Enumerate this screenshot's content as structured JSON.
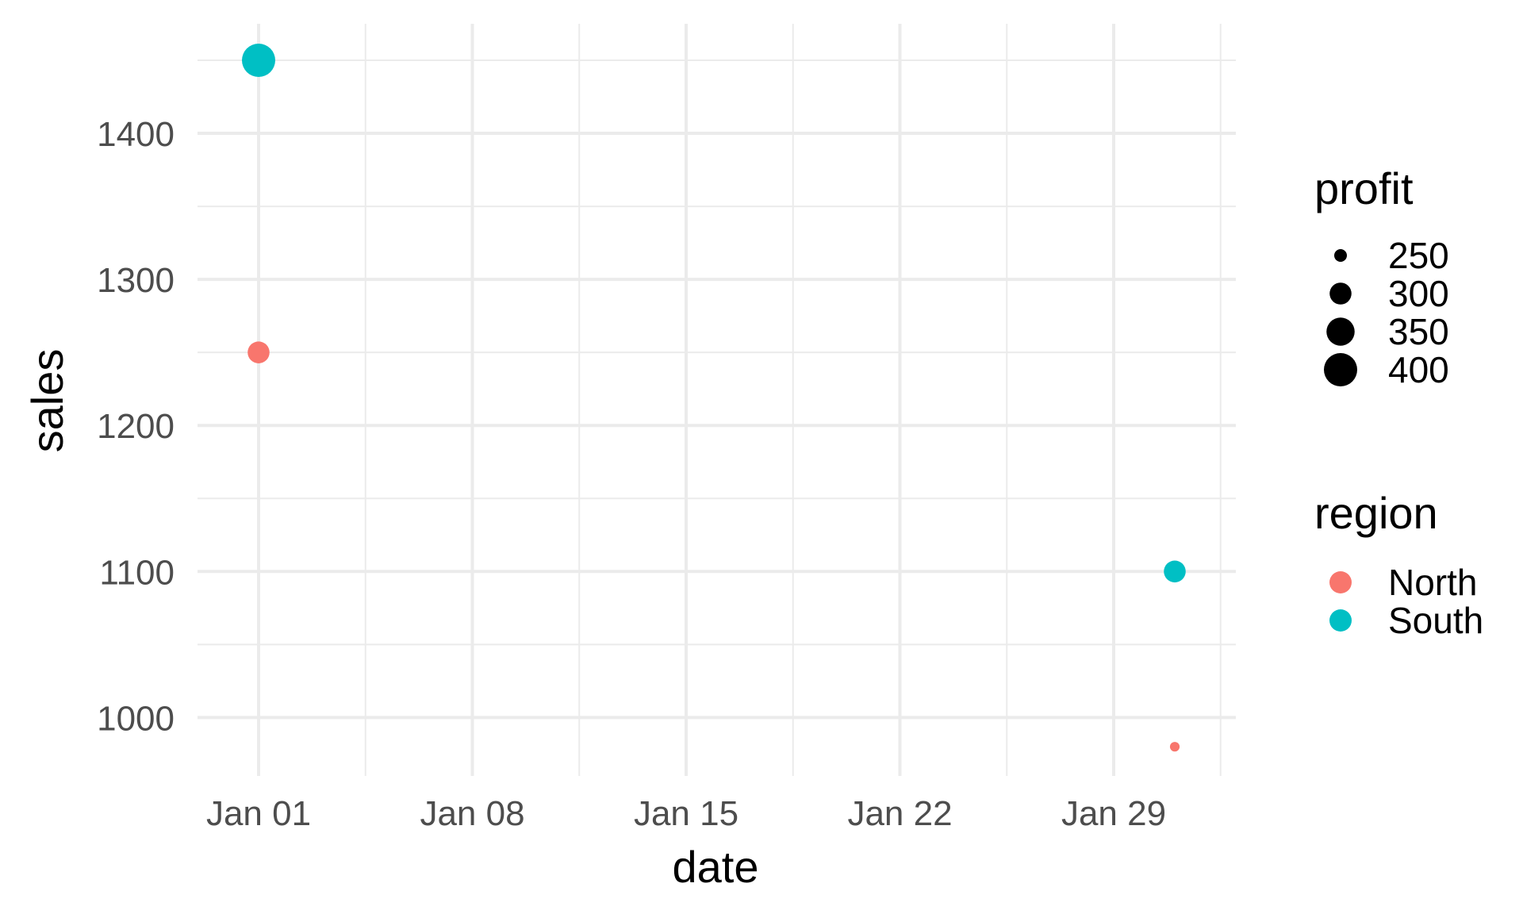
{
  "chart_data": {
    "type": "scatter",
    "title": "",
    "xlabel": "date",
    "ylabel": "sales",
    "x_axis": {
      "scale": "date",
      "range": [
        "2023-12-30",
        "2024-02-02"
      ],
      "ticks": [
        "2024-01-01",
        "2024-01-08",
        "2024-01-15",
        "2024-01-22",
        "2024-01-29"
      ],
      "tick_labels": [
        "Jan 01",
        "Jan 08",
        "Jan 15",
        "Jan 22",
        "Jan 29"
      ]
    },
    "y_axis": {
      "range": [
        960,
        1475
      ],
      "ticks": [
        1000,
        1100,
        1200,
        1300,
        1400
      ],
      "tick_labels": [
        "1000",
        "1100",
        "1200",
        "1300",
        "1400"
      ]
    },
    "grid": true,
    "legend_position": "right",
    "size_legend": {
      "title": "profit",
      "values": [
        250,
        300,
        350,
        400
      ],
      "labels": [
        "250",
        "300",
        "350",
        "400"
      ]
    },
    "color_legend": {
      "title": "region",
      "entries": [
        {
          "label": "North",
          "color": "#F8766D"
        },
        {
          "label": "South",
          "color": "#00BFC4"
        }
      ]
    },
    "series": [
      {
        "name": "North",
        "color": "#F8766D",
        "points": [
          {
            "x": "2024-01-01",
            "y": 1250,
            "profit": 300
          },
          {
            "x": "2024-01-31",
            "y": 980,
            "profit": 200
          }
        ]
      },
      {
        "name": "South",
        "color": "#00BFC4",
        "points": [
          {
            "x": "2024-01-01",
            "y": 1450,
            "profit": 400
          },
          {
            "x": "2024-01-31",
            "y": 1100,
            "profit": 300
          }
        ]
      }
    ]
  }
}
